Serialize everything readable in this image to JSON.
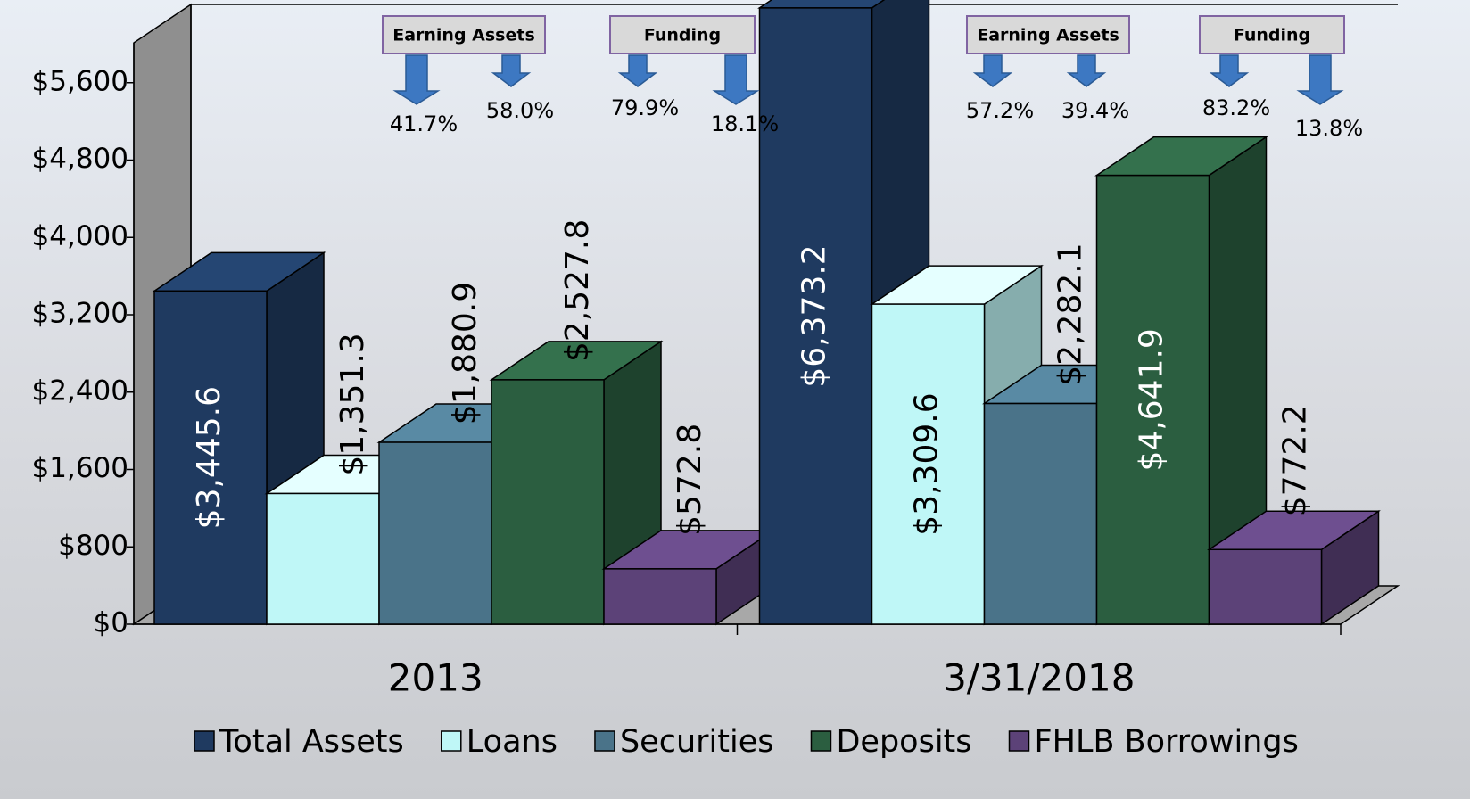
{
  "chart_data": {
    "type": "bar3d",
    "categories": [
      "2013",
      "3/31/2018"
    ],
    "series": [
      {
        "name": "Total Assets",
        "color": "#1f3a60",
        "label_color": "#ffffff",
        "values": [
          3445.6,
          6373.2
        ],
        "value_labels": [
          "$3,445.6",
          "$6,373.2"
        ]
      },
      {
        "name": "Loans",
        "color": "#bff7f7",
        "label_color": "#000000",
        "values": [
          1351.3,
          3309.6
        ],
        "value_labels": [
          "$1,351.3",
          "$3,309.6"
        ]
      },
      {
        "name": "Securities",
        "color": "#4a7389",
        "label_color": "#000000",
        "values": [
          1880.9,
          2282.1
        ],
        "value_labels": [
          "$1,880.9",
          "$2,282.1"
        ]
      },
      {
        "name": "Deposits",
        "color": "#2b5e40",
        "label_color": "#ffffff",
        "values": [
          2527.8,
          4641.9
        ],
        "value_labels": [
          "$2,527.8",
          "$4,641.9"
        ]
      },
      {
        "name": "FHLB Borrowings",
        "color": "#5c4278",
        "label_color": "#000000",
        "values": [
          572.8,
          772.2
        ],
        "value_labels": [
          "$572.8",
          "$772.2"
        ]
      }
    ],
    "ylim": [
      0,
      6400
    ],
    "yticks": [
      {
        "value": 0,
        "label": "$0"
      },
      {
        "value": 800,
        "label": "$800"
      },
      {
        "value": 1600,
        "label": "$1,600"
      },
      {
        "value": 2400,
        "label": "$2,400"
      },
      {
        "value": 3200,
        "label": "$3,200"
      },
      {
        "value": 4000,
        "label": "$4,000"
      },
      {
        "value": 4800,
        "label": "$4,800"
      },
      {
        "value": 5600,
        "label": "$5,600"
      }
    ],
    "annotations": [
      {
        "label": "Earning Assets",
        "values": [
          "41.7%",
          "58.0%"
        ]
      },
      {
        "label": "Funding",
        "values": [
          "79.9%",
          "18.1%"
        ]
      },
      {
        "label": "Earning Assets",
        "values": [
          "57.2%",
          "39.4%"
        ]
      },
      {
        "label": "Funding",
        "values": [
          "83.2%",
          "13.8%"
        ]
      }
    ]
  }
}
